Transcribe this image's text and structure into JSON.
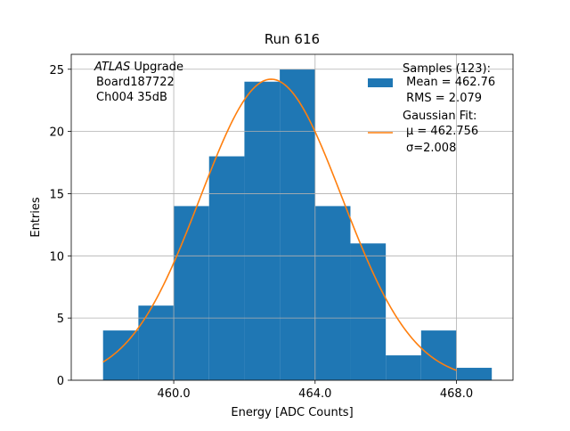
{
  "chart_data": {
    "type": "bar",
    "title": "Run 616",
    "xlabel": "Energy [ADC Counts]",
    "ylabel": "Entries",
    "xlim": [
      457.1,
      469.6
    ],
    "ylim": [
      0,
      26.2
    ],
    "x_ticks": [
      460,
      464,
      468
    ],
    "x_tick_labels": [
      "460.0",
      "464.0",
      "468.0"
    ],
    "y_ticks": [
      0,
      5,
      10,
      15,
      20,
      25
    ],
    "y_tick_labels": [
      "0",
      "5",
      "10",
      "15",
      "20",
      "25"
    ],
    "grid": true,
    "bins": [
      {
        "x0": 458,
        "x1": 459,
        "count": 4
      },
      {
        "x0": 459,
        "x1": 460,
        "count": 6
      },
      {
        "x0": 460,
        "x1": 461,
        "count": 14
      },
      {
        "x0": 461,
        "x1": 462,
        "count": 18
      },
      {
        "x0": 462,
        "x1": 463,
        "count": 24
      },
      {
        "x0": 463,
        "x1": 464,
        "count": 25
      },
      {
        "x0": 464,
        "x1": 465,
        "count": 14
      },
      {
        "x0": 465,
        "x1": 466,
        "count": 11
      },
      {
        "x0": 466,
        "x1": 467,
        "count": 2
      },
      {
        "x0": 467,
        "x1": 468,
        "count": 4
      },
      {
        "x0": 468,
        "x1": 469,
        "count": 1
      }
    ],
    "fit": {
      "mu": 462.756,
      "sigma": 2.008,
      "amplitude": 24.2,
      "x_range": [
        458,
        468
      ]
    },
    "annotation": {
      "lines": [
        {
          "italic": "ATLAS",
          "rest": " Upgrade"
        },
        {
          "italic": "",
          "rest": "Board187722"
        },
        {
          "italic": "",
          "rest": "Ch004 35dB"
        }
      ]
    },
    "legend": {
      "position": "top-right",
      "entries": [
        {
          "kind": "patch",
          "lines": [
            "Samples (123):",
            " Mean = 462.76",
            " RMS = 2.079"
          ]
        },
        {
          "kind": "line",
          "lines": [
            "Gaussian Fit:",
            "μ = 462.756",
            "σ=2.008"
          ]
        }
      ]
    },
    "colors": {
      "hist": "#1f77b4",
      "fit": "#ff7f0e",
      "grid": "#b0b0b0"
    }
  }
}
